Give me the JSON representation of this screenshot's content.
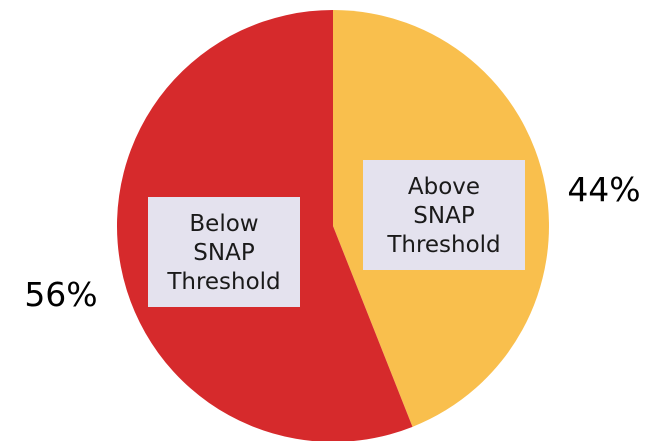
{
  "chart_data": {
    "type": "pie",
    "slices": [
      {
        "label_lines": [
          "Above",
          "SNAP",
          "Threshold"
        ],
        "value": 44,
        "value_label": "44%",
        "color": "#f9bf4d"
      },
      {
        "label_lines": [
          "Below",
          "SNAP",
          "Threshold"
        ],
        "value": 56,
        "value_label": "56%",
        "color": "#d62a2c"
      }
    ],
    "start": "top",
    "direction": "clockwise",
    "legend": "none"
  }
}
